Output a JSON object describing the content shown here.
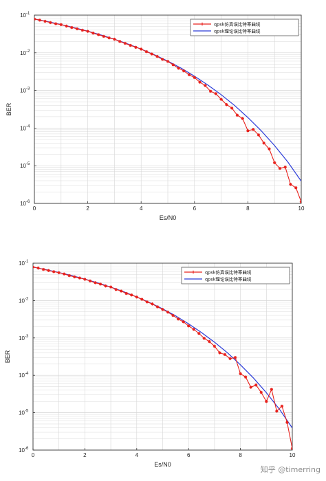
{
  "colors": {
    "sim": "#e8211c",
    "theory": "#2a3bd8",
    "grid": "#d6d6d6",
    "frame": "#333333"
  },
  "watermark": "知乎 @timerring",
  "chart_data": [
    {
      "type": "line",
      "xlabel": "Es/N0",
      "ylabel": "BER",
      "xlim": [
        0,
        10
      ],
      "ylim": [
        1e-06,
        0.1
      ],
      "yscale": "log",
      "grid": true,
      "legend_position": "top-right",
      "x_ticks": [
        "0",
        "2",
        "4",
        "6",
        "8",
        "10"
      ],
      "y_ticks": [
        {
          "base": "10",
          "exp": "-6"
        },
        {
          "base": "10",
          "exp": "-5"
        },
        {
          "base": "10",
          "exp": "-4"
        },
        {
          "base": "10",
          "exp": "-3"
        },
        {
          "base": "10",
          "exp": "-2"
        },
        {
          "base": "10",
          "exp": "-1"
        }
      ],
      "series": [
        {
          "name": "qpsk仿真误比特率曲线",
          "style": "line-with-markers",
          "x": [
            0,
            0.2,
            0.4,
            0.6,
            0.8,
            1.0,
            1.2,
            1.4,
            1.6,
            1.8,
            2.0,
            2.2,
            2.4,
            2.6,
            2.8,
            3.0,
            3.2,
            3.4,
            3.6,
            3.8,
            4.0,
            4.2,
            4.4,
            4.6,
            4.8,
            5.0,
            5.2,
            5.4,
            5.6,
            5.8,
            6.0,
            6.2,
            6.4,
            6.6,
            6.8,
            7.0,
            7.2,
            7.4,
            7.6,
            7.8,
            8.0,
            8.2,
            8.4,
            8.6,
            8.8,
            9.0,
            9.2,
            9.4,
            9.6,
            9.8,
            10.0
          ],
          "y": [
            0.0787,
            0.0735,
            0.0685,
            0.0633,
            0.0589,
            0.056,
            0.0511,
            0.0469,
            0.0433,
            0.0398,
            0.0372,
            0.0333,
            0.0303,
            0.0273,
            0.0248,
            0.0229,
            0.02,
            0.0178,
            0.0157,
            0.014,
            0.0125,
            0.0107,
            0.0093,
            0.008,
            0.0067,
            0.0059,
            0.0048,
            0.0039,
            0.0033,
            0.0026,
            0.0022,
            0.00166,
            0.00135,
            0.00095,
            0.00082,
            0.00058,
            0.00042,
            0.00034,
            0.00022,
            0.00018,
            8.5e-05,
            9.2e-05,
            6.6e-05,
            4e-05,
            2.8e-05,
            1.2e-05,
            8.5e-06,
            9.2e-06,
            3.2e-06,
            2.6e-06,
            1.1e-06
          ]
        },
        {
          "name": "qpsk理论误比特率曲线",
          "style": "line",
          "x": [
            0,
            0.5,
            1.0,
            1.5,
            2.0,
            2.5,
            3.0,
            3.5,
            4.0,
            4.5,
            5.0,
            5.5,
            6.0,
            6.5,
            7.0,
            7.5,
            8.0,
            8.5,
            9.0,
            9.5,
            10.0
          ],
          "y": [
            0.0786,
            0.0671,
            0.0563,
            0.0464,
            0.0375,
            0.0296,
            0.0229,
            0.0172,
            0.0125,
            0.0088,
            0.006,
            0.0039,
            0.00239,
            0.00139,
            0.00077,
            0.0004,
            0.000191,
            8.5e-05,
            3.43e-05,
            1.25e-05,
            3.9e-06
          ]
        }
      ]
    },
    {
      "type": "line",
      "xlabel": "Es/N0",
      "ylabel": "BER",
      "xlim": [
        0,
        10
      ],
      "ylim": [
        1e-06,
        0.1
      ],
      "yscale": "log",
      "grid": true,
      "legend_position": "top-right",
      "x_ticks": [
        "0",
        "2",
        "4",
        "6",
        "8",
        "10"
      ],
      "y_ticks": [
        {
          "base": "10",
          "exp": "-6"
        },
        {
          "base": "10",
          "exp": "-5"
        },
        {
          "base": "10",
          "exp": "-4"
        },
        {
          "base": "10",
          "exp": "-3"
        },
        {
          "base": "10",
          "exp": "-2"
        },
        {
          "base": "10",
          "exp": "-1"
        }
      ],
      "series": [
        {
          "name": "qpsk仿真误比特率曲线",
          "style": "line-with-markers",
          "x": [
            0,
            0.2,
            0.4,
            0.6,
            0.8,
            1.0,
            1.2,
            1.4,
            1.6,
            1.8,
            2.0,
            2.2,
            2.4,
            2.6,
            2.8,
            3.0,
            3.2,
            3.4,
            3.6,
            3.8,
            4.0,
            4.2,
            4.4,
            4.6,
            4.8,
            5.0,
            5.2,
            5.4,
            5.6,
            5.8,
            6.0,
            6.2,
            6.4,
            6.6,
            6.8,
            7.0,
            7.2,
            7.4,
            7.6,
            7.8,
            8.0,
            8.2,
            8.4,
            8.6,
            8.8,
            9.0,
            9.2,
            9.4,
            9.6,
            9.8,
            10.0
          ],
          "y": [
            0.0787,
            0.074,
            0.0682,
            0.0636,
            0.0592,
            0.0556,
            0.0515,
            0.0466,
            0.043,
            0.0402,
            0.037,
            0.0336,
            0.03,
            0.0276,
            0.0245,
            0.0231,
            0.0198,
            0.018,
            0.0155,
            0.0141,
            0.0124,
            0.0108,
            0.0092,
            0.0081,
            0.0068,
            0.0058,
            0.0049,
            0.004,
            0.0032,
            0.0027,
            0.0021,
            0.0017,
            0.00132,
            0.00098,
            0.0008,
            0.0006,
            0.0004,
            0.00036,
            0.00028,
            0.0003,
            0.00011,
            9e-05,
            4.8e-05,
            5.5e-05,
            3.5e-05,
            2e-05,
            4.2e-05,
            1.1e-05,
            1.5e-05,
            5.5e-06,
            1.1e-06
          ]
        },
        {
          "name": "qpsk理论误比特率曲线",
          "style": "line",
          "x": [
            0,
            0.5,
            1.0,
            1.5,
            2.0,
            2.5,
            3.0,
            3.5,
            4.0,
            4.5,
            5.0,
            5.5,
            6.0,
            6.5,
            7.0,
            7.5,
            8.0,
            8.5,
            9.0,
            9.5,
            10.0
          ],
          "y": [
            0.0786,
            0.0671,
            0.0563,
            0.0464,
            0.0375,
            0.0296,
            0.0229,
            0.0172,
            0.0125,
            0.0088,
            0.006,
            0.0039,
            0.00239,
            0.00139,
            0.00077,
            0.0004,
            0.000191,
            8.5e-05,
            3.43e-05,
            1.25e-05,
            3.9e-06
          ]
        }
      ]
    }
  ]
}
